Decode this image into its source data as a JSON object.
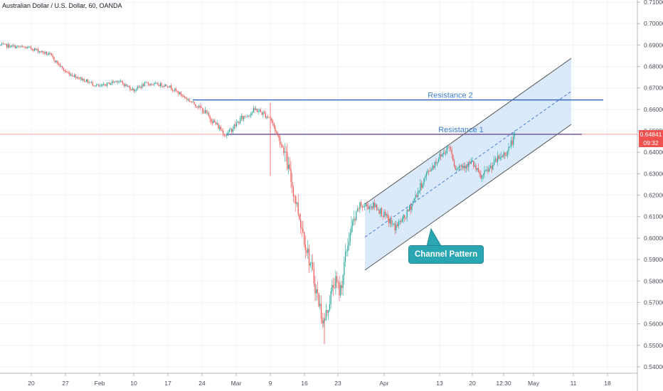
{
  "title": "Australian Dollar / U.S. Dollar, 60, OANDA",
  "colors": {
    "up": "#26a69a",
    "down": "#ef5350",
    "resistance": "#2f5fc0",
    "channel_fill": "#cfe3f8",
    "channel_line": "#545454",
    "callout": "#2aa6b3",
    "price_tag": "#ef5350"
  },
  "chart_data": {
    "type": "candlestick",
    "symbol": "AUD/USD",
    "interval": "60",
    "x_ticks": [
      "20",
      "27",
      "Feb",
      "10",
      "17",
      "24",
      "Mar",
      "9",
      "16",
      "23",
      "Apr",
      "13",
      "20",
      "12:30",
      "May",
      "11",
      "18"
    ],
    "y_ticks": [
      "0.71000",
      "0.70000",
      "0.69000",
      "0.68000",
      "0.67000",
      "0.66000",
      "0.65000",
      "0.64000",
      "0.63000",
      "0.62000",
      "0.61000",
      "0.60000",
      "0.59000",
      "0.58000",
      "0.57000",
      "0.56000",
      "0.55000",
      "0.54000"
    ],
    "ylim": [
      0.537,
      0.711
    ],
    "last_price": "0.64841",
    "countdown": "09:32",
    "series": [
      {
        "values": [
          [
            "Jan 16",
            0.69
          ],
          [
            "Jan 20",
            0.6885
          ],
          [
            "Jan 24",
            0.6855
          ],
          [
            "Jan 28",
            0.6775
          ],
          [
            "Feb 2",
            0.6705
          ],
          [
            "Feb 6",
            0.6735
          ],
          [
            "Feb 10",
            0.669
          ],
          [
            "Feb 13",
            0.672
          ],
          [
            "Feb 17",
            0.6712
          ],
          [
            "Feb 20",
            0.666
          ],
          [
            "Feb 24",
            0.66
          ],
          [
            "Feb 28",
            0.648
          ],
          [
            "Mar 2",
            0.656
          ],
          [
            "Mar 5",
            0.66
          ],
          [
            "Mar 9",
            0.656
          ],
          [
            "Mar 12",
            0.64
          ],
          [
            "Mar 15",
            0.62
          ],
          [
            "Mar 17",
            0.6
          ],
          [
            "Mar 19",
            0.56
          ],
          [
            "Mar 21",
            0.58
          ],
          [
            "Mar 23",
            0.575
          ],
          [
            "Mar 25",
            0.6
          ],
          [
            "Mar 27",
            0.615
          ],
          [
            "Mar 30",
            0.615
          ],
          [
            "Apr 2",
            0.605
          ],
          [
            "Apr 5",
            0.61
          ],
          [
            "Apr 9",
            0.63
          ],
          [
            "Apr 12",
            0.638
          ],
          [
            "Apr 14",
            0.643
          ],
          [
            "Apr 16",
            0.633
          ],
          [
            "Apr 19",
            0.635
          ],
          [
            "Apr 21",
            0.628
          ],
          [
            "Apr 23",
            0.637
          ],
          [
            "Apr 26",
            0.64
          ],
          [
            "Apr 29",
            0.6484
          ]
        ]
      }
    ],
    "annotations": {
      "resistance_1": {
        "label": "Resistance 1",
        "price": 0.6484
      },
      "resistance_2": {
        "label": "Resistance 2",
        "price": 0.6644
      },
      "channel_label": "Channel Pattern"
    }
  }
}
